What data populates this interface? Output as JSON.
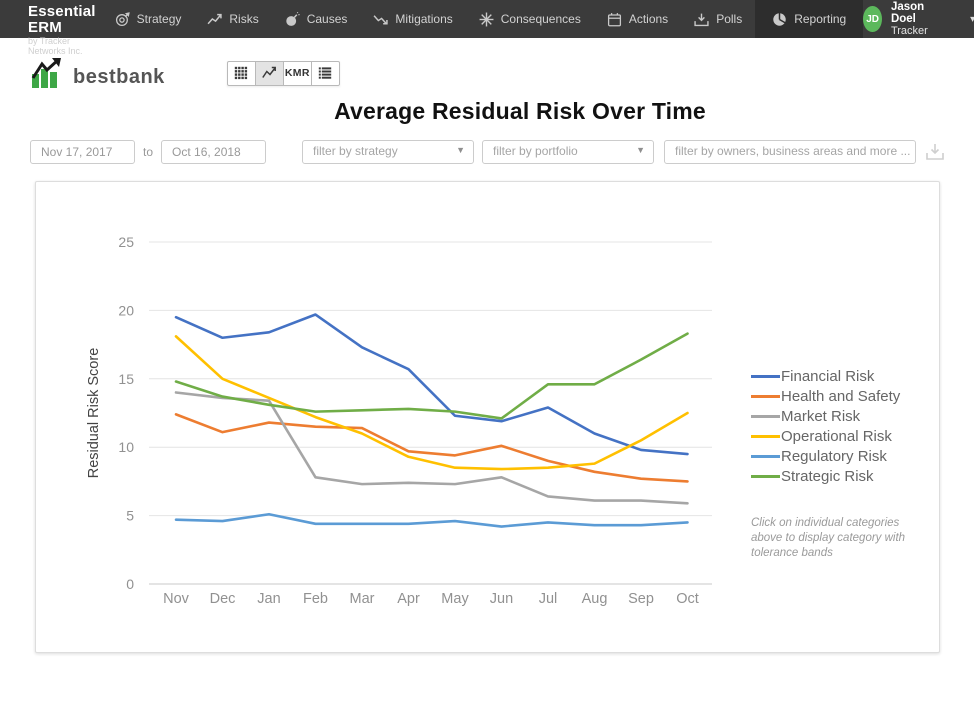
{
  "nav": {
    "brand_title": "Essential ERM",
    "brand_subtitle": "by Tracker Networks Inc.",
    "items": [
      {
        "label": "Strategy",
        "icon": "target-icon",
        "active": false
      },
      {
        "label": "Risks",
        "icon": "trend-up-icon",
        "active": false
      },
      {
        "label": "Causes",
        "icon": "bomb-icon",
        "active": false
      },
      {
        "label": "Mitigations",
        "icon": "trend-down-icon",
        "active": false
      },
      {
        "label": "Consequences",
        "icon": "burst-icon",
        "active": false
      },
      {
        "label": "Actions",
        "icon": "calendar-icon",
        "active": false
      },
      {
        "label": "Polls",
        "icon": "ballot-icon",
        "active": false
      },
      {
        "label": "Reporting",
        "icon": "pie-icon",
        "active": true
      }
    ],
    "user": {
      "initials": "JD",
      "name": "Jason Doel",
      "org": "Tracker"
    }
  },
  "toolbar": {
    "logo_text": "bestbank",
    "buttons": [
      {
        "name": "grid-view-button",
        "icon": "grid-icon",
        "label": "",
        "active": false
      },
      {
        "name": "line-view-button",
        "icon": "line-chart-icon",
        "label": "",
        "active": true
      },
      {
        "name": "kmr-view-button",
        "icon": "",
        "label": "KMR",
        "active": false
      },
      {
        "name": "list-view-button",
        "icon": "list-icon",
        "label": "",
        "active": false
      }
    ]
  },
  "page_title": "Average Residual Risk Over Time",
  "filters": {
    "date_from": "Nov 17, 2017",
    "to_label": "to",
    "date_to": "Oct 16, 2018",
    "strategy_placeholder": "filter by strategy",
    "portfolio_placeholder": "filter by portfolio",
    "owners_placeholder": "filter by owners, business areas and more ...",
    "download_icon": "download-icon"
  },
  "chart_data": {
    "type": "line",
    "title": "Average Residual Risk Over Time",
    "xlabel": "",
    "ylabel": "Residual Risk Score",
    "ylim": [
      0,
      25
    ],
    "yticks": [
      0,
      5,
      10,
      15,
      20,
      25
    ],
    "grid": true,
    "legend_position": "right",
    "categories": [
      "Nov",
      "Dec",
      "Jan",
      "Feb",
      "Mar",
      "Apr",
      "May",
      "Jun",
      "Jul",
      "Aug",
      "Sep",
      "Oct"
    ],
    "series": [
      {
        "name": "Financial Risk",
        "color": "#4472C4",
        "values": [
          19.5,
          18.0,
          18.4,
          19.7,
          17.3,
          15.7,
          12.3,
          11.9,
          12.9,
          11.0,
          9.8,
          9.5
        ]
      },
      {
        "name": "Health and Safety",
        "color": "#ED7D31",
        "values": [
          12.4,
          11.1,
          11.8,
          11.5,
          11.4,
          9.7,
          9.4,
          10.1,
          9.0,
          8.2,
          7.7,
          7.5
        ]
      },
      {
        "name": "Market Risk",
        "color": "#A6A6A6",
        "values": [
          14.0,
          13.6,
          13.4,
          7.8,
          7.3,
          7.4,
          7.3,
          7.8,
          6.4,
          6.1,
          6.1,
          5.9
        ]
      },
      {
        "name": "Operational Risk",
        "color": "#FFC000",
        "values": [
          18.1,
          15.0,
          13.6,
          12.2,
          11.0,
          9.3,
          8.5,
          8.4,
          8.5,
          8.8,
          10.5,
          12.5
        ]
      },
      {
        "name": "Regulatory Risk",
        "color": "#5B9BD5",
        "values": [
          4.7,
          4.6,
          5.1,
          4.4,
          4.4,
          4.4,
          4.6,
          4.2,
          4.5,
          4.3,
          4.3,
          4.5
        ]
      },
      {
        "name": "Strategic Risk",
        "color": "#70AD47",
        "values": [
          14.8,
          13.7,
          13.1,
          12.6,
          12.7,
          12.8,
          12.6,
          12.1,
          14.6,
          14.6,
          16.4,
          18.3
        ]
      }
    ],
    "note": "Click on individual categories above to display category with tolerance bands"
  },
  "colors": {
    "nav_bg": "#3b3b3b",
    "nav_active_bg": "#2d2d2d",
    "avatar_green": "#5cb85c",
    "logo_green": "#3ea746",
    "gridline": "#e4e4e4",
    "axis_text": "#919191"
  }
}
